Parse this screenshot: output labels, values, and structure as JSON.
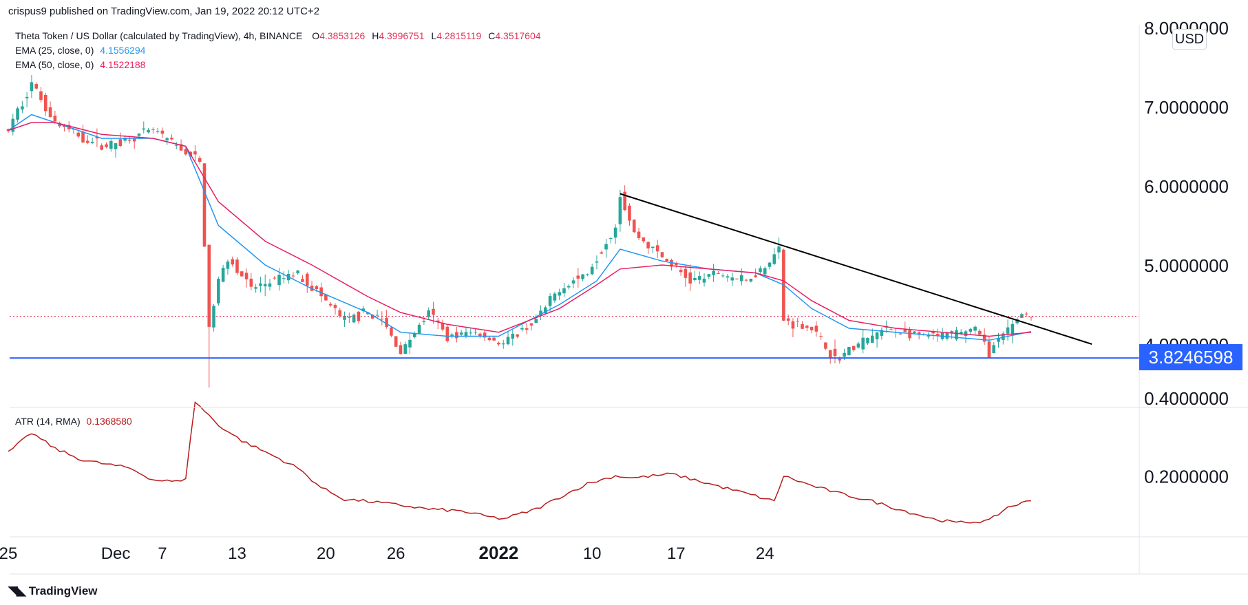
{
  "published": "crispus9 published on TradingView.com, Jan 19, 2022 20:12 UTC+2",
  "usd_label": "USD",
  "brand": "TradingView",
  "legend": {
    "symbol": "Theta Token / US Dollar (calculated by TradingView), 4h, BINANCE",
    "o_label": "O",
    "o": "4.3853126",
    "h_label": "H",
    "h": "4.3996751",
    "l_label": "L",
    "l": "4.2815119",
    "c_label": "C",
    "c": "4.3517604",
    "ema25_label": "EMA (25, close, 0)",
    "ema25": "4.1556294",
    "ema50_label": "EMA (50, close, 0)",
    "ema50": "4.1522188",
    "atr_label": "ATR (14, RMA)",
    "atr": "0.1368580"
  },
  "support_label": "3.8246598",
  "colors": {
    "up": "#26a69a",
    "down": "#ef5350",
    "ema25": "#2196f3",
    "ema50": "#e91e63",
    "atr": "#b71c1c",
    "support": "#2962ff",
    "trend": "#000000",
    "current": "#e0365a"
  },
  "chart_data": [
    {
      "type": "candlestick",
      "title": "Theta Token / US Dollar, 4h, BINANCE",
      "x_tick_labels": [
        "25",
        "Dec",
        "7",
        "13",
        "20",
        "26",
        "2022",
        "10",
        "17",
        "24"
      ],
      "y_tick_labels": [
        "8.0000000",
        "7.0000000",
        "6.0000000",
        "5.0000000",
        "4.0000000"
      ],
      "ylim": [
        3.4,
        8.0
      ],
      "close_path": [
        [
          0,
          6.7
        ],
        [
          5,
          7.3
        ],
        [
          10,
          6.8
        ],
        [
          16,
          6.6
        ],
        [
          21,
          6.5
        ],
        [
          26,
          6.6
        ],
        [
          31,
          6.7
        ],
        [
          36,
          6.5
        ],
        [
          41,
          6.3
        ],
        [
          43,
          4.2
        ],
        [
          45,
          4.8
        ],
        [
          47,
          5.1
        ],
        [
          52,
          4.7
        ],
        [
          57,
          4.8
        ],
        [
          62,
          4.9
        ],
        [
          67,
          4.6
        ],
        [
          72,
          4.3
        ],
        [
          77,
          4.4
        ],
        [
          80,
          4.3
        ],
        [
          84,
          3.9
        ],
        [
          90,
          4.4
        ],
        [
          94,
          4.1
        ],
        [
          100,
          4.15
        ],
        [
          106,
          4.0
        ],
        [
          113,
          4.3
        ],
        [
          118,
          4.7
        ],
        [
          124,
          4.9
        ],
        [
          130,
          5.5
        ],
        [
          131,
          5.9
        ],
        [
          134,
          5.4
        ],
        [
          140,
          5.1
        ],
        [
          146,
          4.8
        ],
        [
          152,
          4.9
        ],
        [
          158,
          4.8
        ],
        [
          162,
          5.0
        ],
        [
          165,
          5.2
        ],
        [
          166,
          4.3
        ],
        [
          172,
          4.2
        ],
        [
          177,
          3.8
        ],
        [
          182,
          4.0
        ],
        [
          188,
          4.2
        ],
        [
          194,
          4.1
        ],
        [
          200,
          4.1
        ],
        [
          207,
          4.2
        ],
        [
          210,
          3.9
        ],
        [
          213,
          4.1
        ],
        [
          217,
          4.4
        ],
        [
          219,
          4.35
        ]
      ],
      "ema25_path": [
        [
          0,
          6.7
        ],
        [
          5,
          6.9
        ],
        [
          10,
          6.8
        ],
        [
          20,
          6.6
        ],
        [
          31,
          6.6
        ],
        [
          38,
          6.5
        ],
        [
          45,
          5.5
        ],
        [
          55,
          5.0
        ],
        [
          65,
          4.7
        ],
        [
          77,
          4.4
        ],
        [
          84,
          4.15
        ],
        [
          94,
          4.1
        ],
        [
          105,
          4.1
        ],
        [
          118,
          4.5
        ],
        [
          126,
          4.8
        ],
        [
          131,
          5.2
        ],
        [
          140,
          5.05
        ],
        [
          150,
          4.95
        ],
        [
          160,
          4.9
        ],
        [
          166,
          4.75
        ],
        [
          172,
          4.45
        ],
        [
          180,
          4.2
        ],
        [
          190,
          4.15
        ],
        [
          200,
          4.1
        ],
        [
          210,
          4.05
        ],
        [
          219,
          4.16
        ]
      ],
      "ema50_path": [
        [
          0,
          6.7
        ],
        [
          5,
          6.8
        ],
        [
          10,
          6.8
        ],
        [
          20,
          6.65
        ],
        [
          31,
          6.6
        ],
        [
          38,
          6.5
        ],
        [
          45,
          5.8
        ],
        [
          55,
          5.3
        ],
        [
          65,
          5.0
        ],
        [
          77,
          4.6
        ],
        [
          84,
          4.4
        ],
        [
          94,
          4.25
        ],
        [
          105,
          4.15
        ],
        [
          118,
          4.45
        ],
        [
          126,
          4.75
        ],
        [
          131,
          4.95
        ],
        [
          140,
          5.0
        ],
        [
          150,
          4.95
        ],
        [
          160,
          4.9
        ],
        [
          166,
          4.8
        ],
        [
          172,
          4.55
        ],
        [
          180,
          4.3
        ],
        [
          190,
          4.2
        ],
        [
          200,
          4.15
        ],
        [
          210,
          4.1
        ],
        [
          219,
          4.15
        ]
      ],
      "support": 3.8246598,
      "current_price": 4.3517604,
      "trendline": [
        [
          131,
          5.9
        ],
        [
          232,
          4.0
        ]
      ]
    },
    {
      "type": "line",
      "title": "ATR (14, RMA)",
      "y_tick_labels": [
        "0.4000000",
        "0.2000000"
      ],
      "ylim": [
        0.0,
        0.4
      ],
      "values": [
        [
          0,
          0.26
        ],
        [
          5,
          0.31
        ],
        [
          10,
          0.27
        ],
        [
          16,
          0.24
        ],
        [
          21,
          0.23
        ],
        [
          26,
          0.22
        ],
        [
          31,
          0.19
        ],
        [
          36,
          0.185
        ],
        [
          38,
          0.195
        ],
        [
          40,
          0.39
        ],
        [
          45,
          0.33
        ],
        [
          50,
          0.29
        ],
        [
          57,
          0.25
        ],
        [
          62,
          0.22
        ],
        [
          67,
          0.17
        ],
        [
          72,
          0.14
        ],
        [
          77,
          0.135
        ],
        [
          84,
          0.125
        ],
        [
          90,
          0.115
        ],
        [
          97,
          0.11
        ],
        [
          103,
          0.095
        ],
        [
          106,
          0.09
        ],
        [
          113,
          0.115
        ],
        [
          118,
          0.145
        ],
        [
          124,
          0.18
        ],
        [
          130,
          0.2
        ],
        [
          134,
          0.195
        ],
        [
          142,
          0.205
        ],
        [
          150,
          0.18
        ],
        [
          158,
          0.155
        ],
        [
          164,
          0.135
        ],
        [
          166,
          0.2
        ],
        [
          172,
          0.175
        ],
        [
          178,
          0.155
        ],
        [
          185,
          0.135
        ],
        [
          192,
          0.11
        ],
        [
          198,
          0.09
        ],
        [
          203,
          0.08
        ],
        [
          210,
          0.085
        ],
        [
          214,
          0.12
        ],
        [
          219,
          0.137
        ]
      ]
    }
  ]
}
